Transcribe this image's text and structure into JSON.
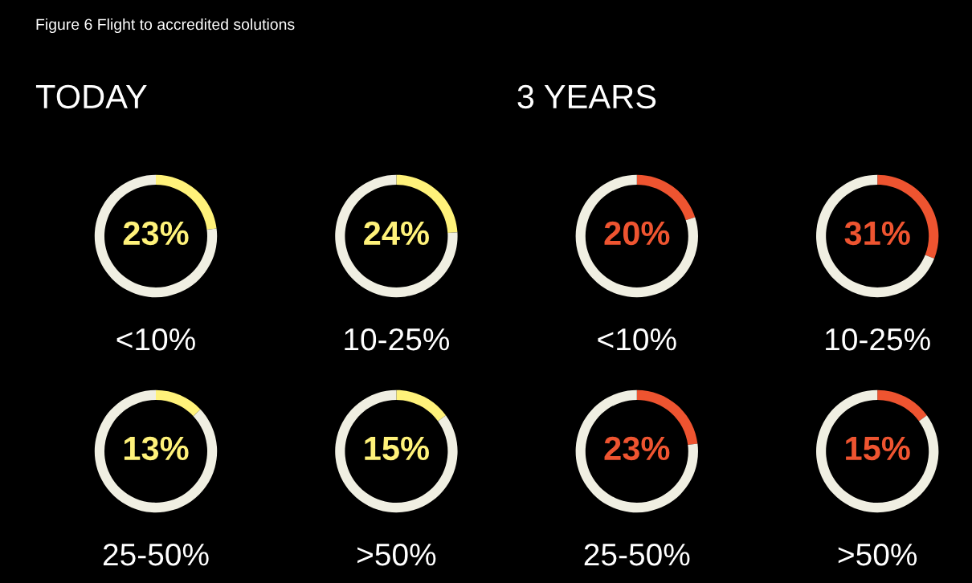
{
  "chart_data": [
    {
      "type": "donut",
      "title": "Figure 6 Flight to accredited solutions",
      "subtitle": "TODAY",
      "categories": [
        null,
        null
      ],
      "values": [
        23,
        77
      ],
      "colors": [
        "#fff27a",
        "#f0efe2"
      ],
      "value_labels": [
        "23%",
        null
      ],
      "xlabel": "<10%"
    },
    {
      "type": "donut",
      "categories": [
        null,
        null
      ],
      "values": [
        24,
        76
      ],
      "colors": [
        "#fff27a",
        "#f0efe2"
      ],
      "value_labels": [
        "24%",
        null
      ],
      "xlabel": "10-25%"
    },
    {
      "type": "donut",
      "subtitle": "3 YEARS",
      "categories": [
        null,
        null
      ],
      "values": [
        20,
        80
      ],
      "colors": [
        "#ee5430",
        "#f0efe2"
      ],
      "value_labels": [
        "20%",
        null
      ],
      "xlabel": "<10%"
    },
    {
      "type": "donut",
      "categories": [
        null,
        null
      ],
      "values": [
        31,
        69
      ],
      "colors": [
        "#ee5430",
        "#f0efe2"
      ],
      "value_labels": [
        "31%",
        null
      ],
      "xlabel": "10-25%"
    },
    {
      "type": "donut",
      "categories": [
        null,
        null
      ],
      "values": [
        13,
        87
      ],
      "colors": [
        "#fff27a",
        "#f0efe2"
      ],
      "value_labels": [
        "13%",
        null
      ],
      "xlabel": "25-50%"
    },
    {
      "type": "donut",
      "categories": [
        null,
        null
      ],
      "values": [
        15,
        85
      ],
      "colors": [
        "#fff27a",
        "#f0efe2"
      ],
      "value_labels": [
        "15%",
        null
      ],
      "xlabel": ">50%"
    },
    {
      "type": "donut",
      "categories": [
        null,
        null
      ],
      "values": [
        23,
        77
      ],
      "colors": [
        "#ee5430",
        "#f0efe2"
      ],
      "value_labels": [
        "23%",
        null
      ],
      "xlabel": "25-50%"
    },
    {
      "type": "donut",
      "categories": [
        null,
        null
      ],
      "values": [
        15,
        85
      ],
      "colors": [
        "#ee5430",
        "#f0efe2"
      ],
      "value_labels": [
        "15%",
        null
      ],
      "xlabel": ">50%"
    }
  ]
}
